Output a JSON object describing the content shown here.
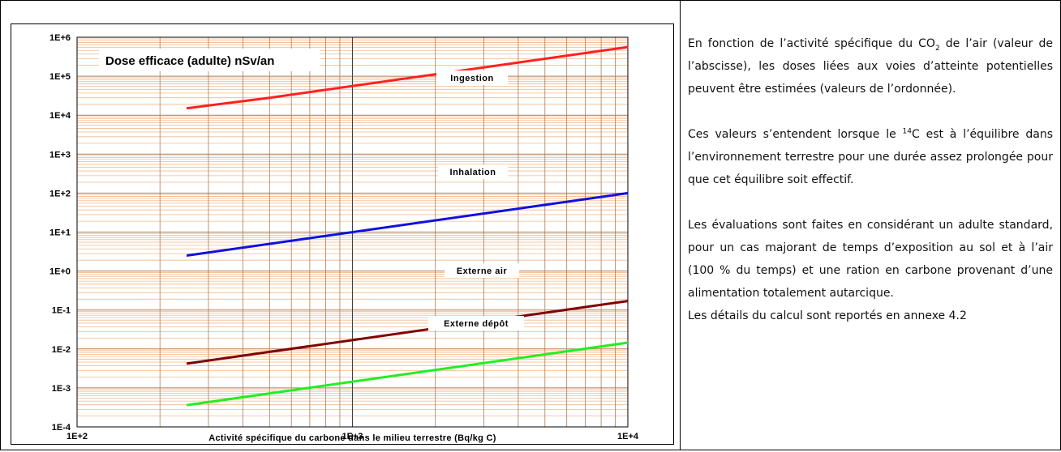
{
  "chart_data": {
    "type": "line",
    "title": "Dose efficace (adulte) nSv/an",
    "xlabel": "Activité spécifique du carbone dans le milieu terrestre (Bq/kg C)",
    "ylabel": "",
    "xscale": "log",
    "yscale": "log",
    "xlim": [
      100,
      10000
    ],
    "ylim": [
      0.0001,
      1000000
    ],
    "grid": true,
    "x_tick_labels": [
      "1E+2",
      "1E+3",
      "1E+4"
    ],
    "y_tick_labels": [
      "1E-4",
      "1E-3",
      "1E-2",
      "1E-1",
      "1E+0",
      "1E+1",
      "1E+2",
      "1E+3",
      "1E+4",
      "1E+5",
      "1E+6"
    ],
    "series": [
      {
        "name": "Ingestion",
        "color": "#ff2020",
        "x": [
          250,
          500,
          1000,
          10000
        ],
        "y": [
          15000,
          28000,
          56000,
          560000
        ]
      },
      {
        "name": "Inhalation",
        "color": "#1010e0",
        "x": [
          250,
          10000
        ],
        "y": [
          2.5,
          100
        ]
      },
      {
        "name": "Externe air",
        "color": "#800000",
        "x": [
          250,
          10000
        ],
        "y": [
          0.0042,
          0.17
        ]
      },
      {
        "name": "Externe dépôt",
        "color": "#22ee22",
        "x": [
          250,
          10000
        ],
        "y": [
          0.00036,
          0.0145
        ]
      }
    ]
  },
  "text": {
    "p1_a": "En fonction de l’activité spécifique du CO",
    "p1_sub": "2",
    "p1_b": " de l’air (valeur de l’abscisse), les doses liées aux voies d’atteinte potentielles peuvent être estimées (valeurs de l’ordonnée).",
    "p2_a": "Ces valeurs s’entendent lorsque le ",
    "p2_sup": "14",
    "p2_b": "C est à l’équilibre dans l’environnement terrestre pour une durée assez prolongée pour que cet équilibre soit effectif.",
    "p3": "Les évaluations sont faites en considérant un adulte standard, pour un cas majorant de temps d’exposition au sol et à l’air (100 % du temps) et une ration en carbone provenant d’une alimentation totalement autarcique.",
    "p4": "Les détails du calcul sont reportés en annexe 4.2"
  },
  "colors": {
    "minor_grid": "#f2b98c",
    "major_grid": "#b07a50"
  }
}
